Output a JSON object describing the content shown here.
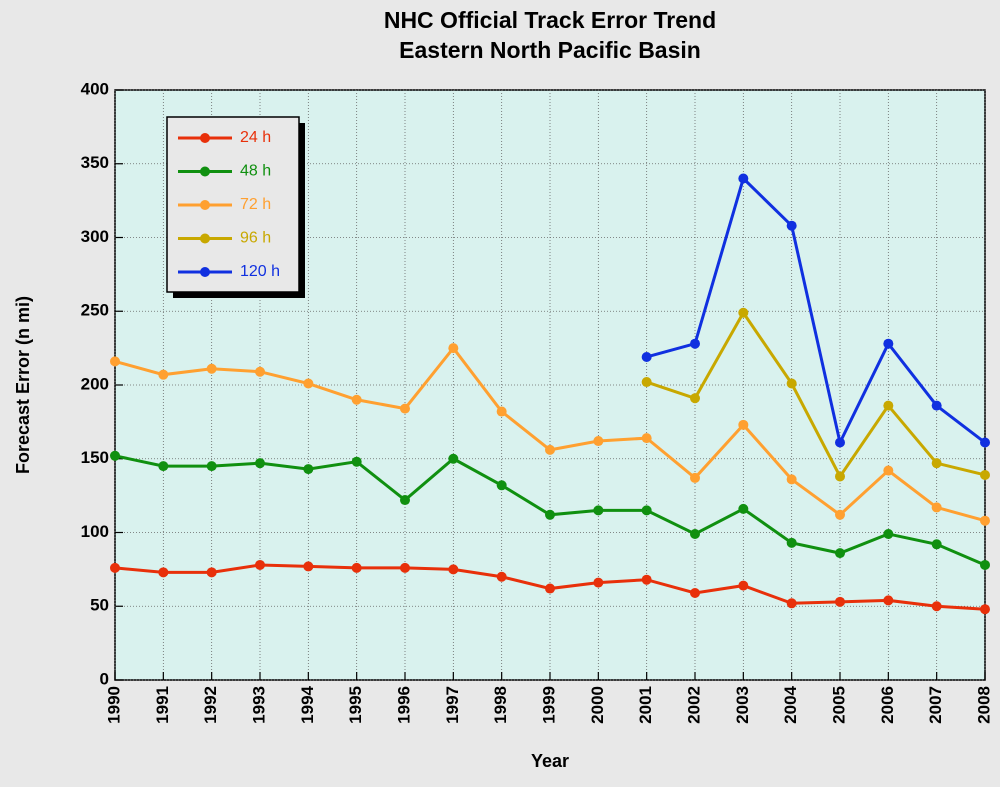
{
  "chart_data": {
    "type": "line",
    "title": "NHC Official Track Error Trend",
    "subtitle": "Eastern North Pacific Basin",
    "x_label": "Year",
    "y_label": "Forecast Error (n mi)",
    "x": [
      1990,
      1991,
      1992,
      1993,
      1994,
      1995,
      1996,
      1997,
      1998,
      1999,
      2000,
      2001,
      2002,
      2003,
      2004,
      2005,
      2006,
      2007,
      2008
    ],
    "xlim": [
      1990,
      2008
    ],
    "xticks": [
      1990,
      1991,
      1992,
      1993,
      1994,
      1995,
      1996,
      1997,
      1998,
      1999,
      2000,
      2001,
      2002,
      2003,
      2004,
      2005,
      2006,
      2007,
      2008
    ],
    "ylim": [
      0,
      400
    ],
    "yticks": [
      0,
      50,
      100,
      150,
      200,
      250,
      300,
      350,
      400
    ],
    "grid": true,
    "series": [
      {
        "name": "24 h",
        "color": "#e8300a",
        "values": [
          76,
          73,
          73,
          78,
          77,
          76,
          76,
          75,
          70,
          62,
          66,
          68,
          59,
          64,
          52,
          53,
          54,
          50,
          48
        ]
      },
      {
        "name": "48 h",
        "color": "#109010",
        "values": [
          152,
          145,
          145,
          147,
          143,
          148,
          122,
          150,
          132,
          112,
          115,
          115,
          99,
          116,
          93,
          86,
          99,
          92,
          78
        ]
      },
      {
        "name": "72 h",
        "color": "#ffa030",
        "values": [
          216,
          207,
          211,
          209,
          201,
          190,
          184,
          225,
          182,
          156,
          162,
          164,
          137,
          173,
          136,
          112,
          142,
          117,
          108
        ]
      },
      {
        "name": "96 h",
        "color": "#c8a800",
        "values": [
          null,
          null,
          null,
          null,
          null,
          null,
          null,
          null,
          null,
          null,
          null,
          202,
          191,
          249,
          201,
          138,
          186,
          147,
          139
        ]
      },
      {
        "name": "120 h",
        "color": "#1030e0",
        "values": [
          null,
          null,
          null,
          null,
          null,
          null,
          null,
          null,
          null,
          null,
          null,
          219,
          228,
          340,
          308,
          161,
          228,
          186,
          161
        ]
      }
    ]
  }
}
